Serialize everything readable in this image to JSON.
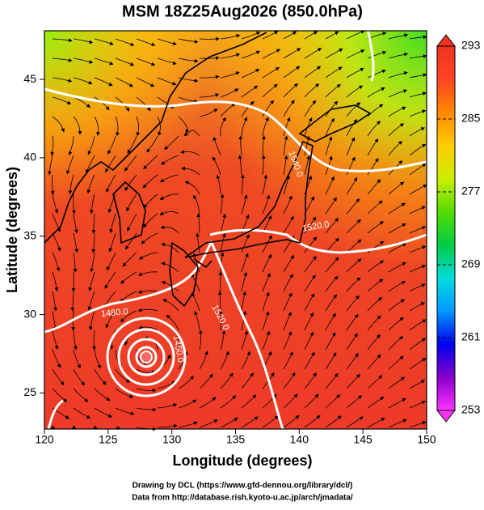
{
  "map": {
    "title": "MSM 18Z25Aug2026 (850.0hPa)",
    "xlabel": "Longitude (degrees)",
    "ylabel": "Latitude  (degrees)",
    "xlim": [
      120,
      150
    ],
    "ylim": [
      22.7,
      48.1
    ],
    "xticks": [
      120,
      125,
      130,
      135,
      140,
      145,
      150
    ],
    "yticks": [
      25,
      30,
      35,
      40,
      45
    ],
    "grid": true,
    "colorbar": {
      "lim": [
        253,
        293
      ],
      "ticks": [
        253,
        261,
        269,
        277,
        285,
        293
      ],
      "colors": [
        "#ff33ff",
        "#8800cc",
        "#0000ee",
        "#0099ff",
        "#00dddd",
        "#00cc44",
        "#55dd00",
        "#ccee00",
        "#ffcc00",
        "#ff8800",
        "#ff4422",
        "#ee3322"
      ]
    },
    "contour_labels": [
      {
        "text": "1520.0",
        "lon": 141.3,
        "lat": 35.6,
        "angle": -10
      },
      {
        "text": "1480.0",
        "lon": 125.5,
        "lat": 30.1,
        "angle": -5
      },
      {
        "text": "1520.0",
        "lon": 133.8,
        "lat": 29.8,
        "angle": 62
      },
      {
        "text": "1450.0",
        "lon": 130.5,
        "lat": 27.8,
        "angle": 80
      },
      {
        "text": "1540.0",
        "lon": 139.7,
        "lat": 39.6,
        "angle": 70
      }
    ],
    "credits": [
      "Drawing by DCL (https://www.gfd-dennou.org/library/dcl/)",
      "Data from http://database.rish.kyoto-u.ac.jp/arch/jmadata/"
    ]
  }
}
